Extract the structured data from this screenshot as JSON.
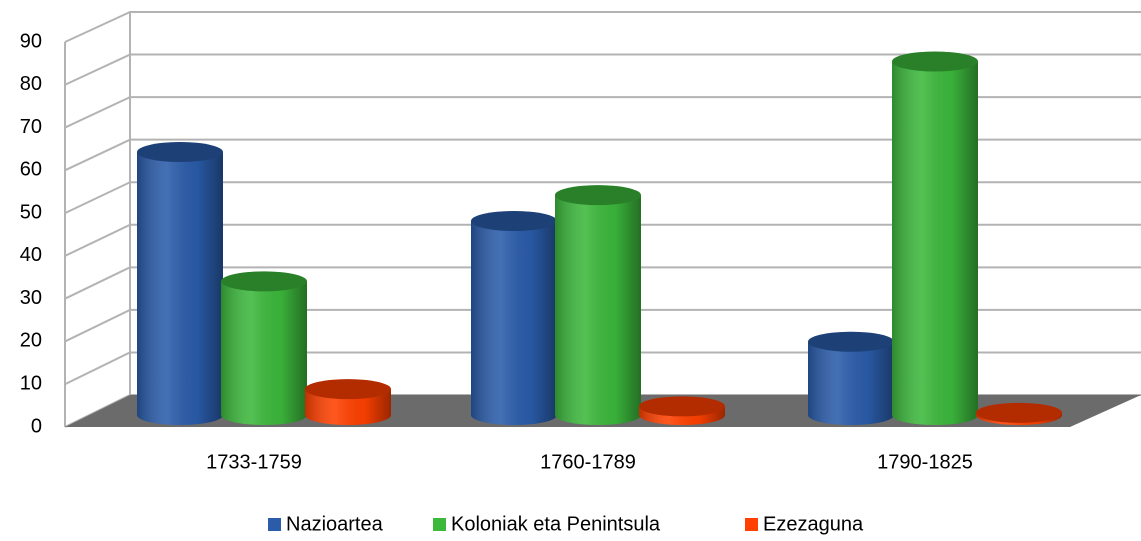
{
  "chart_data": {
    "type": "bar3d",
    "categories": [
      "1733-1759",
      "1760-1789",
      "1790-1825"
    ],
    "series": [
      {
        "name": "Nazioartea",
        "color": "#2a5caa",
        "values": [
          61,
          45,
          17
        ]
      },
      {
        "name": "Koloniak eta Penintsula",
        "color": "#3cb83c",
        "values": [
          31,
          51,
          82
        ]
      },
      {
        "name": "Ezezaguna",
        "color": "#ff4000",
        "values": [
          6,
          2,
          0.5
        ]
      }
    ],
    "ylim": [
      0,
      90
    ],
    "yticks": [
      0,
      10,
      20,
      30,
      40,
      50,
      60,
      70,
      80,
      90
    ],
    "grid": true,
    "legend": "bottom"
  }
}
